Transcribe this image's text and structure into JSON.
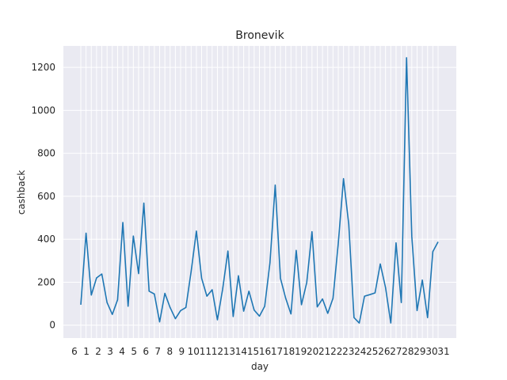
{
  "chart_data": {
    "type": "line",
    "title": "Bronevik",
    "xlabel": "day",
    "ylabel": "cashback",
    "ylim": [
      -60,
      1300
    ],
    "yticks": [
      0,
      200,
      400,
      600,
      800,
      1000,
      1200
    ],
    "y_tick_labels": [
      "0",
      "200",
      "400",
      "600",
      "800",
      "1000",
      "1200"
    ],
    "x_tick_labels_visible": [
      "6",
      "1",
      "2",
      "3",
      "4",
      "5",
      "6",
      "7",
      "8",
      "9",
      "10",
      "11",
      "12",
      "13",
      "14",
      "15",
      "16",
      "17",
      "18",
      "19",
      "20",
      "21",
      "22",
      "23",
      "24",
      "25",
      "26",
      "27",
      "28",
      "29",
      "30",
      "31"
    ],
    "x_edge_labels": {
      "first": "6",
      "last": "1"
    },
    "grid": true,
    "line_color": "#1f77b4",
    "background_color": "#eaeaf2",
    "values": [
      95,
      428,
      140,
      220,
      238,
      105,
      50,
      118,
      478,
      88,
      415,
      240,
      568,
      158,
      145,
      15,
      148,
      82,
      30,
      68,
      82,
      250,
      438,
      218,
      135,
      165,
      25,
      168,
      345,
      40,
      230,
      65,
      158,
      70,
      42,
      88,
      290,
      652,
      218,
      125,
      52,
      348,
      95,
      198,
      435,
      85,
      122,
      55,
      125,
      380,
      682,
      470,
      35,
      10,
      135,
      142,
      150,
      285,
      175,
      10,
      383,
      105,
      1245,
      412,
      68,
      210,
      35,
      342,
      388
    ]
  }
}
